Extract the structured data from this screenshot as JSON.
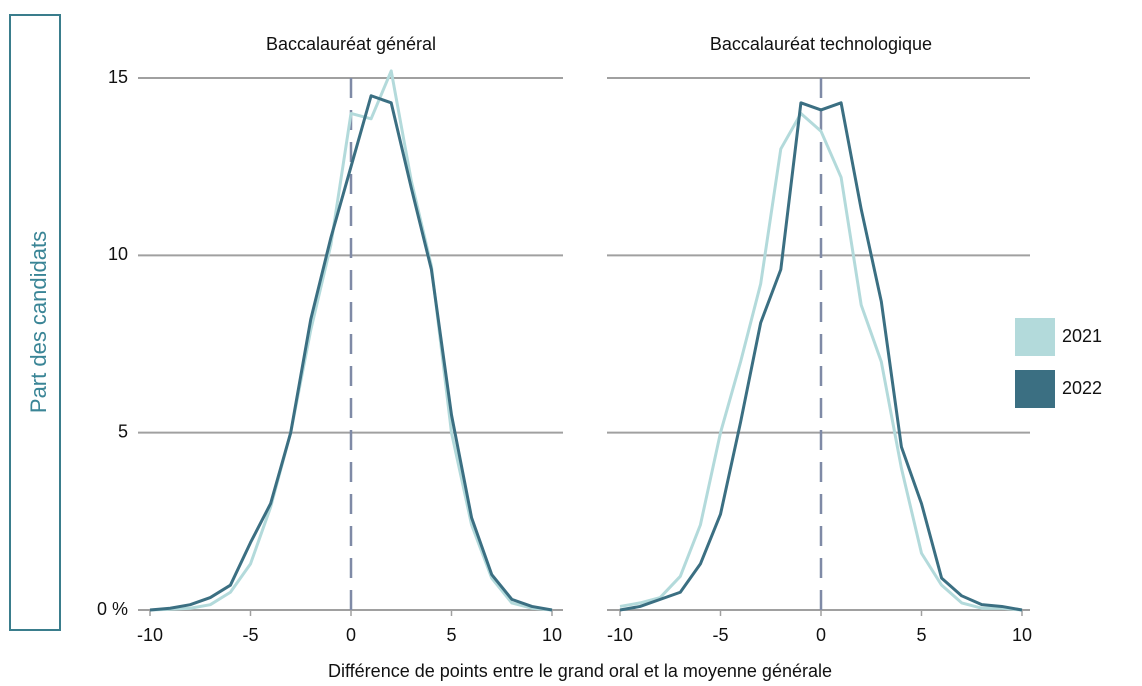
{
  "ylabel": "Part des candidats",
  "xlabel": "Différence de points entre le grand oral et la moyenne générale",
  "chart_data": [
    {
      "type": "line",
      "title": "Baccalauréat général",
      "x": [
        -10,
        -9,
        -8,
        -7,
        -6,
        -5,
        -4,
        -3,
        -2,
        -1,
        0,
        1,
        2,
        3,
        4,
        5,
        6,
        7,
        8,
        9,
        10
      ],
      "series": [
        {
          "name": "2021",
          "color": "#b3dadb",
          "values": [
            0,
            0.02,
            0.05,
            0.15,
            0.5,
            1.3,
            2.9,
            5.0,
            7.9,
            10.3,
            14.0,
            13.85,
            15.2,
            12.1,
            9.7,
            5.0,
            2.4,
            0.9,
            0.2,
            0.05,
            0
          ]
        },
        {
          "name": "2022",
          "color": "#3b6f82",
          "values": [
            0,
            0.05,
            0.15,
            0.35,
            0.7,
            1.9,
            3.0,
            5.0,
            8.2,
            10.5,
            12.5,
            14.5,
            14.3,
            11.9,
            9.6,
            5.5,
            2.6,
            1.0,
            0.3,
            0.1,
            0
          ]
        }
      ],
      "xlim": [
        -10,
        10
      ],
      "xticks": [
        -10,
        -5,
        0,
        5,
        10
      ],
      "ylim": [
        0,
        15
      ],
      "yticks": [
        {
          "value": 0,
          "label": "0 %"
        },
        5,
        10,
        15
      ],
      "grid": true,
      "legend": "right"
    },
    {
      "type": "line",
      "title": "Baccalauréat technologique",
      "x": [
        -10,
        -9,
        -8,
        -7,
        -6,
        -5,
        -4,
        -3,
        -2,
        -1,
        0,
        1,
        2,
        3,
        4,
        5,
        6,
        7,
        8,
        9,
        10
      ],
      "series": [
        {
          "name": "2021",
          "color": "#b3dadb",
          "values": [
            0.1,
            0.2,
            0.35,
            0.95,
            2.4,
            5.0,
            7.0,
            9.2,
            13.0,
            14.0,
            13.5,
            12.2,
            8.6,
            7.0,
            4.0,
            1.6,
            0.7,
            0.2,
            0.05,
            0.05,
            0
          ]
        },
        {
          "name": "2022",
          "color": "#3b6f82",
          "values": [
            0,
            0.1,
            0.3,
            0.5,
            1.3,
            2.7,
            5.3,
            8.1,
            9.6,
            14.3,
            14.1,
            14.3,
            11.3,
            8.7,
            4.6,
            3.0,
            0.9,
            0.4,
            0.15,
            0.1,
            0
          ]
        }
      ],
      "xlim": [
        -10,
        10
      ],
      "xticks": [
        -10,
        -5,
        0,
        5,
        10
      ],
      "ylim": [
        0,
        15
      ],
      "yticks": [
        0,
        5,
        10,
        15
      ],
      "grid": true
    }
  ]
}
